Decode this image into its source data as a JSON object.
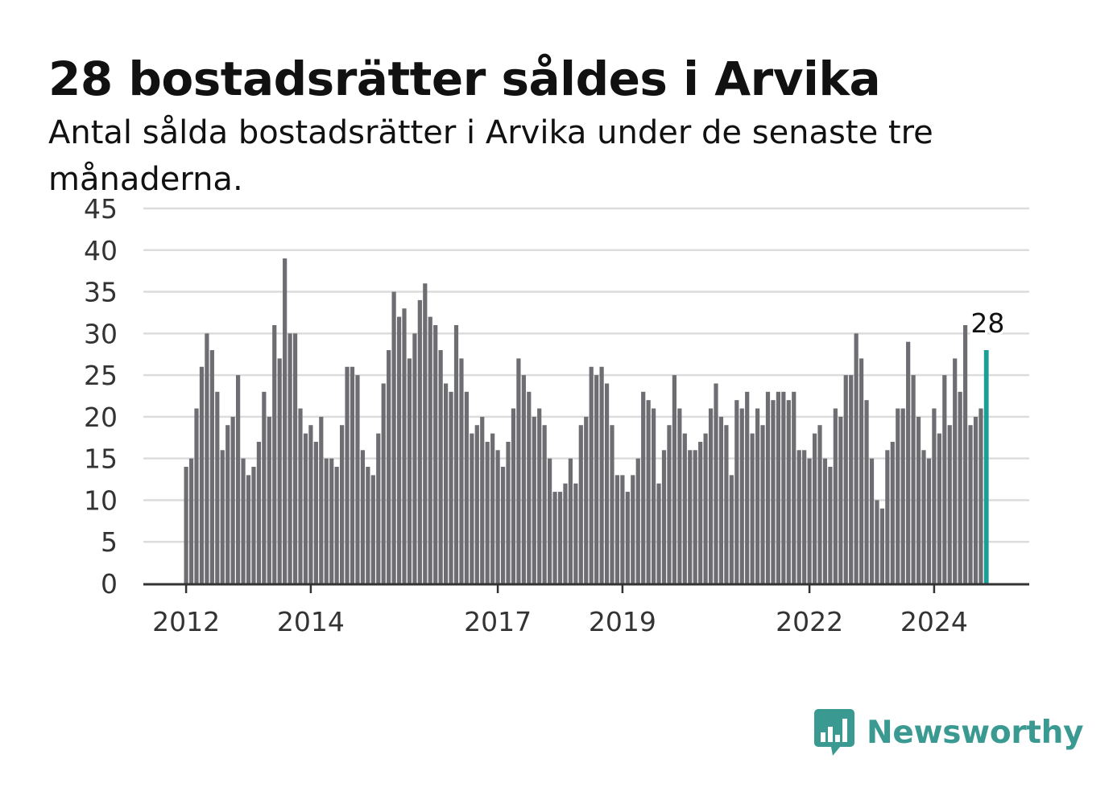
{
  "title": "28 bostadsrätter såldes i Arvika",
  "subtitle": "Antal sålda bostadsrätter i Arvika under de senaste tre månaderna.",
  "brand": {
    "name": "Newsworthy",
    "logo_icon": "bar-chart-speech-bubble-icon",
    "color": "#3a9a92"
  },
  "colors": {
    "bar": "#6d6d72",
    "highlight": "#1a9e96",
    "grid": "#dcdcdc",
    "axis": "#333333"
  },
  "chart_data": {
    "type": "bar",
    "title": "28 bostadsrätter såldes i Arvika",
    "subtitle": "Antal sålda bostadsrätter i Arvika under de senaste tre månaderna.",
    "xlabel": "",
    "ylabel": "",
    "ylim": [
      0,
      45
    ],
    "yticks": [
      0,
      5,
      10,
      15,
      20,
      25,
      30,
      35,
      40,
      45
    ],
    "xticks": [
      "2012",
      "2014",
      "2017",
      "2019",
      "2022",
      "2024"
    ],
    "grid": true,
    "start_month": "2012-01",
    "frequency": "monthly",
    "highlight_label": "28",
    "values": [
      14,
      15,
      21,
      26,
      30,
      28,
      23,
      16,
      19,
      20,
      25,
      15,
      13,
      14,
      17,
      23,
      20,
      31,
      27,
      39,
      30,
      30,
      21,
      18,
      19,
      17,
      20,
      15,
      15,
      14,
      19,
      26,
      26,
      25,
      16,
      14,
      13,
      18,
      24,
      28,
      35,
      32,
      33,
      27,
      30,
      34,
      36,
      32,
      31,
      28,
      24,
      23,
      31,
      27,
      23,
      18,
      19,
      20,
      17,
      18,
      16,
      14,
      17,
      21,
      27,
      25,
      23,
      20,
      21,
      19,
      15,
      11,
      11,
      12,
      15,
      12,
      19,
      20,
      26,
      25,
      26,
      24,
      19,
      13,
      13,
      11,
      13,
      15,
      23,
      22,
      21,
      12,
      16,
      19,
      25,
      21,
      18,
      16,
      16,
      17,
      18,
      21,
      24,
      20,
      19,
      13,
      22,
      21,
      23,
      18,
      21,
      19,
      23,
      22,
      23,
      23,
      22,
      23,
      16,
      16,
      15,
      18,
      19,
      15,
      14,
      21,
      20,
      25,
      25,
      30,
      27,
      22,
      15,
      10,
      9,
      16,
      17,
      21,
      21,
      29,
      25,
      20,
      16,
      15,
      21,
      18,
      25,
      19,
      27,
      23,
      31,
      19,
      20,
      21,
      28
    ]
  }
}
